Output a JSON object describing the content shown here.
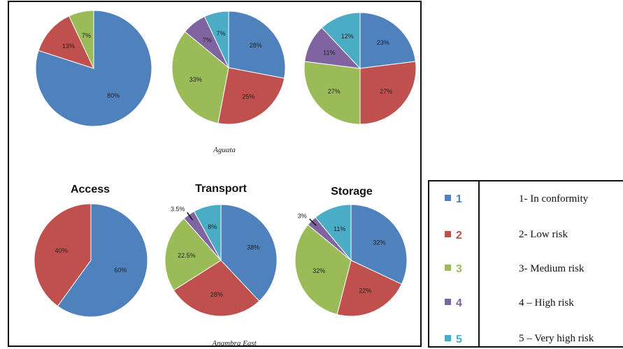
{
  "group_labels": {
    "top": "Aguata",
    "bottom": "Anambra East"
  },
  "pie_titles": {
    "access": "Access",
    "transport": "Transport",
    "storage": "Storage"
  },
  "colors": {
    "c1": "#4F81BD",
    "c2": "#C0504D",
    "c3": "#9BBB59",
    "c4": "#8064A2",
    "c5": "#4BACC6"
  },
  "legend": [
    {
      "key": "1",
      "text": "1- In conformity",
      "color": "#4F81BD"
    },
    {
      "key": "2",
      "text": "2- Low risk",
      "color": "#C0504D"
    },
    {
      "key": "3",
      "text": "3- Medium risk",
      "color": "#9BBB59"
    },
    {
      "key": "4",
      "text": "4 – High risk",
      "color": "#8064A2"
    },
    {
      "key": "5",
      "text": "5 – Very high risk",
      "color": "#4BACC6"
    }
  ],
  "chart_data": [
    {
      "type": "pie",
      "group": "Aguata",
      "title": "",
      "slices": [
        {
          "category": "1",
          "value": 80,
          "label": "80%"
        },
        {
          "category": "2",
          "value": 13,
          "label": "13%"
        },
        {
          "category": "3",
          "value": 7,
          "label": "7%"
        }
      ]
    },
    {
      "type": "pie",
      "group": "Aguata",
      "title": "",
      "slices": [
        {
          "category": "1",
          "value": 28,
          "label": "28%"
        },
        {
          "category": "2",
          "value": 25,
          "label": "25%"
        },
        {
          "category": "3",
          "value": 33,
          "label": "33%"
        },
        {
          "category": "4",
          "value": 7,
          "label": "7%"
        },
        {
          "category": "5",
          "value": 7,
          "label": "7%"
        }
      ]
    },
    {
      "type": "pie",
      "group": "Aguata",
      "title": "",
      "slices": [
        {
          "category": "1",
          "value": 23,
          "label": "23%"
        },
        {
          "category": "2",
          "value": 27,
          "label": "27%"
        },
        {
          "category": "3",
          "value": 27,
          "label": "27%"
        },
        {
          "category": "4",
          "value": 11,
          "label": "11%"
        },
        {
          "category": "5",
          "value": 12,
          "label": "12%"
        }
      ]
    },
    {
      "type": "pie",
      "group": "Anambra East",
      "title": "Access",
      "slices": [
        {
          "category": "1",
          "value": 60,
          "label": "60%"
        },
        {
          "category": "2",
          "value": 40,
          "label": "40%"
        }
      ]
    },
    {
      "type": "pie",
      "group": "Anambra East",
      "title": "Transport",
      "slices": [
        {
          "category": "1",
          "value": 38,
          "label": "38%"
        },
        {
          "category": "2",
          "value": 28,
          "label": "28%"
        },
        {
          "category": "3",
          "value": 22.5,
          "label": "22.5%"
        },
        {
          "category": "4",
          "value": 3.5,
          "label": "3.5%"
        },
        {
          "category": "5",
          "value": 8,
          "label": "8%"
        }
      ]
    },
    {
      "type": "pie",
      "group": "Anambra East",
      "title": "Storage",
      "slices": [
        {
          "category": "1",
          "value": 32,
          "label": "32%"
        },
        {
          "category": "2",
          "value": 22,
          "label": "22%"
        },
        {
          "category": "3",
          "value": 32,
          "label": "32%"
        },
        {
          "category": "4",
          "value": 3,
          "label": "3%"
        },
        {
          "category": "5",
          "value": 11,
          "label": "11%"
        }
      ]
    }
  ]
}
